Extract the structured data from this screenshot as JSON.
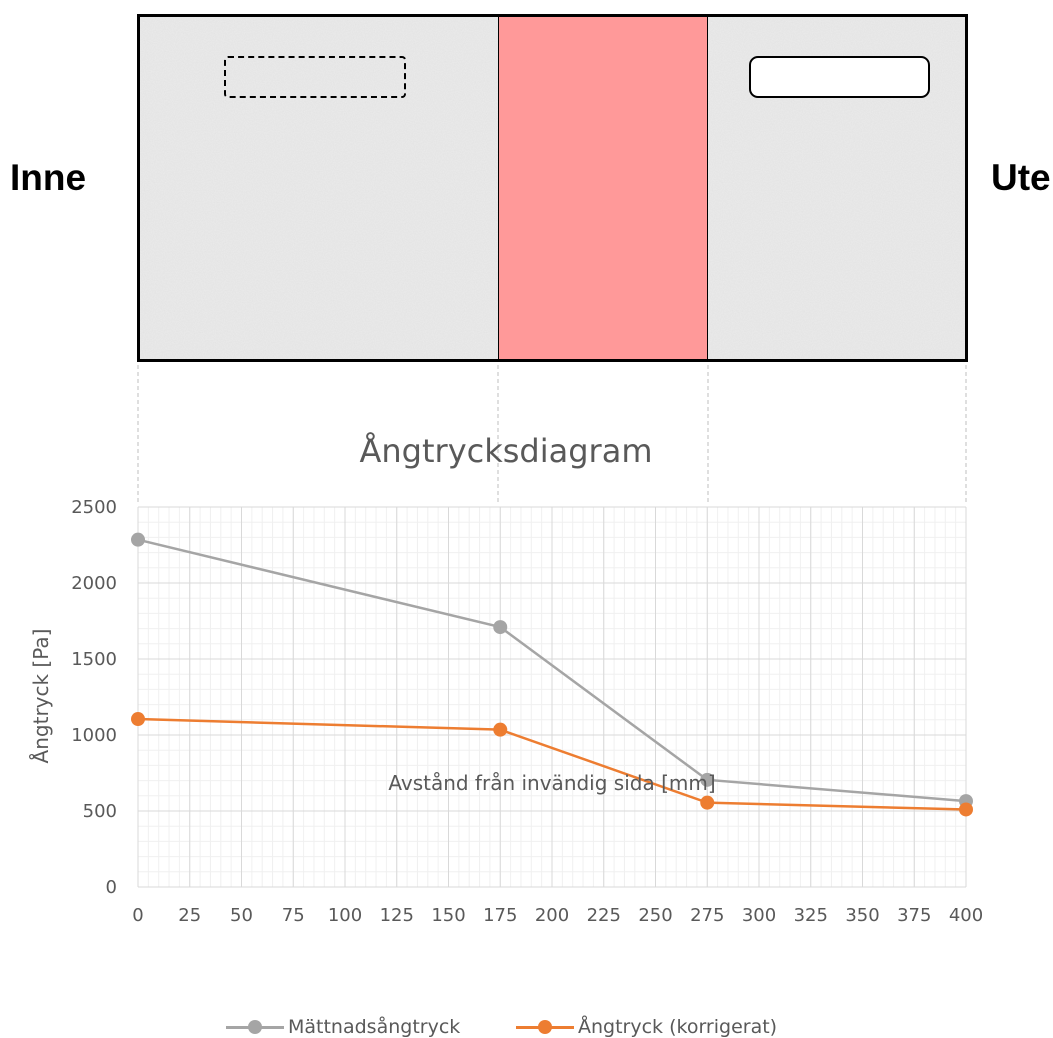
{
  "wall": {
    "left_label": "Inne",
    "right_label": "Ute",
    "layers": [
      {
        "name": "concrete-inner",
        "color": "#ececec"
      },
      {
        "name": "insulation",
        "color": "#ff9999"
      },
      {
        "name": "concrete-outer",
        "color": "#ececec"
      }
    ]
  },
  "chart_data": {
    "type": "line",
    "title": "Ångtrycksdiagram",
    "xlabel": "Avstånd från invändig sida [mm]",
    "ylabel": "Ångtryck [Pa]",
    "xlim": [
      0,
      400
    ],
    "ylim": [
      0,
      2500
    ],
    "xticks": [
      0,
      25,
      50,
      75,
      100,
      125,
      150,
      175,
      200,
      225,
      250,
      275,
      300,
      325,
      350,
      375,
      400
    ],
    "yticks": [
      0,
      500,
      1000,
      1500,
      2000,
      2500
    ],
    "grid": true,
    "legend_position": "bottom",
    "series": [
      {
        "name": "Mättnadsångtryck",
        "color": "#a5a5a5",
        "x": [
          0,
          175,
          275,
          400
        ],
        "y": [
          2285,
          1710,
          705,
          565
        ]
      },
      {
        "name": "Ångtryck (korrigerat)",
        "color": "#ed7d31",
        "x": [
          0,
          175,
          275,
          400
        ],
        "y": [
          1105,
          1035,
          555,
          510
        ]
      }
    ]
  }
}
